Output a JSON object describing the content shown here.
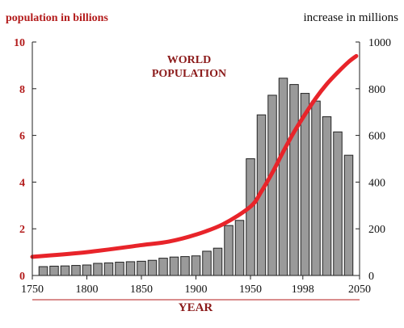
{
  "chart_data": {
    "type": "bar",
    "title_line1": "WORLD",
    "title_line2": "POPULATION",
    "left_axis_label": "population in billions",
    "right_axis_label": "increase in millions",
    "xlabel": "YEAR",
    "x_ticks": [
      "1750",
      "1800",
      "1850",
      "1900",
      "1950",
      "1998",
      "2050"
    ],
    "left_ticks": [
      "0",
      "2",
      "4",
      "6",
      "8",
      "10"
    ],
    "right_ticks": [
      "0",
      "200",
      "400",
      "600",
      "800",
      "1000"
    ],
    "xlim": [
      1750,
      2050
    ],
    "ylim_left": [
      0,
      10
    ],
    "ylim_right": [
      0,
      1000
    ],
    "bars": {
      "name": "increase in millions",
      "years": [
        1760,
        1770,
        1780,
        1790,
        1800,
        1810,
        1820,
        1830,
        1840,
        1850,
        1860,
        1870,
        1880,
        1890,
        1900,
        1910,
        1920,
        1930,
        1940,
        1950,
        1960,
        1970,
        1980,
        1990,
        2000,
        2010,
        2020,
        2030,
        2040
      ],
      "values": [
        38,
        40,
        41,
        43,
        45,
        52,
        54,
        57,
        59,
        61,
        65,
        74,
        79,
        81,
        84,
        104,
        117,
        214,
        236,
        500,
        688,
        772,
        845,
        818,
        780,
        747,
        680,
        615,
        515
      ]
    },
    "line": {
      "name": "population in billions",
      "x": [
        1750,
        1800,
        1850,
        1875,
        1900,
        1925,
        1950,
        1960,
        1970,
        1980,
        1990,
        2000,
        2010,
        2020,
        2030,
        2040,
        2047
      ],
      "y": [
        0.8,
        1.0,
        1.3,
        1.45,
        1.75,
        2.2,
        2.95,
        3.6,
        4.4,
        5.3,
        6.15,
        6.9,
        7.6,
        8.2,
        8.7,
        9.15,
        9.4
      ]
    },
    "colors": {
      "accent": "#b31b1b",
      "line": "#e8242a",
      "bar_fill": "#9a9a9a",
      "bar_stroke": "#222222",
      "axis": "#222222"
    }
  }
}
